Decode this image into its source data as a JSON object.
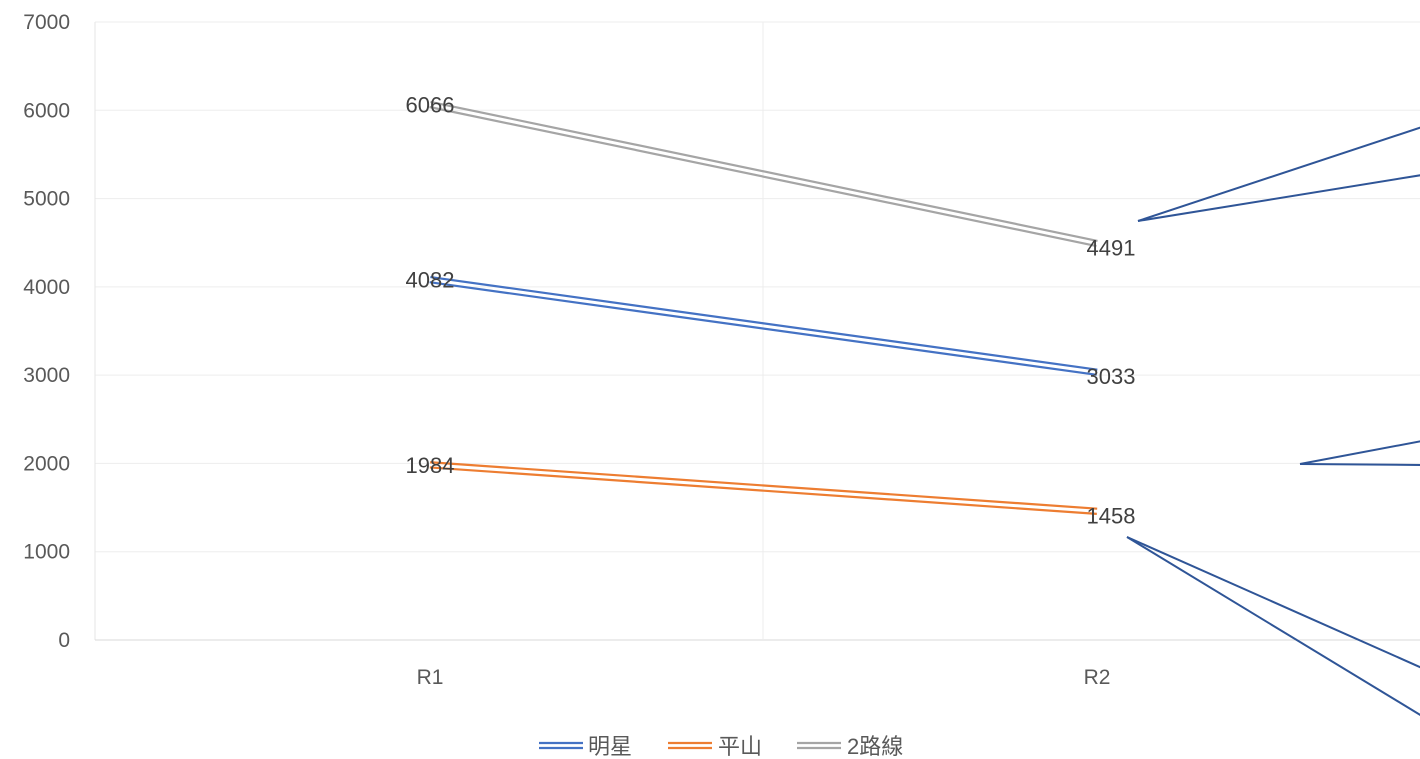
{
  "chart_data": {
    "type": "line",
    "categories": [
      "R1",
      "R2"
    ],
    "ylim": [
      0,
      7000
    ],
    "yticks": [
      0,
      1000,
      2000,
      3000,
      4000,
      5000,
      6000,
      7000
    ],
    "grid": true,
    "legend_position": "bottom",
    "series": [
      {
        "name": "明星",
        "values": [
          4082,
          3033
        ],
        "color": "#4472C4"
      },
      {
        "name": "平山",
        "values": [
          1984,
          1458
        ],
        "color": "#ED7D31"
      },
      {
        "name": "2路線",
        "values": [
          6066,
          4491
        ],
        "color": "#A5A5A5"
      }
    ],
    "data_labels": true,
    "annotation_color": "#2F5597"
  }
}
